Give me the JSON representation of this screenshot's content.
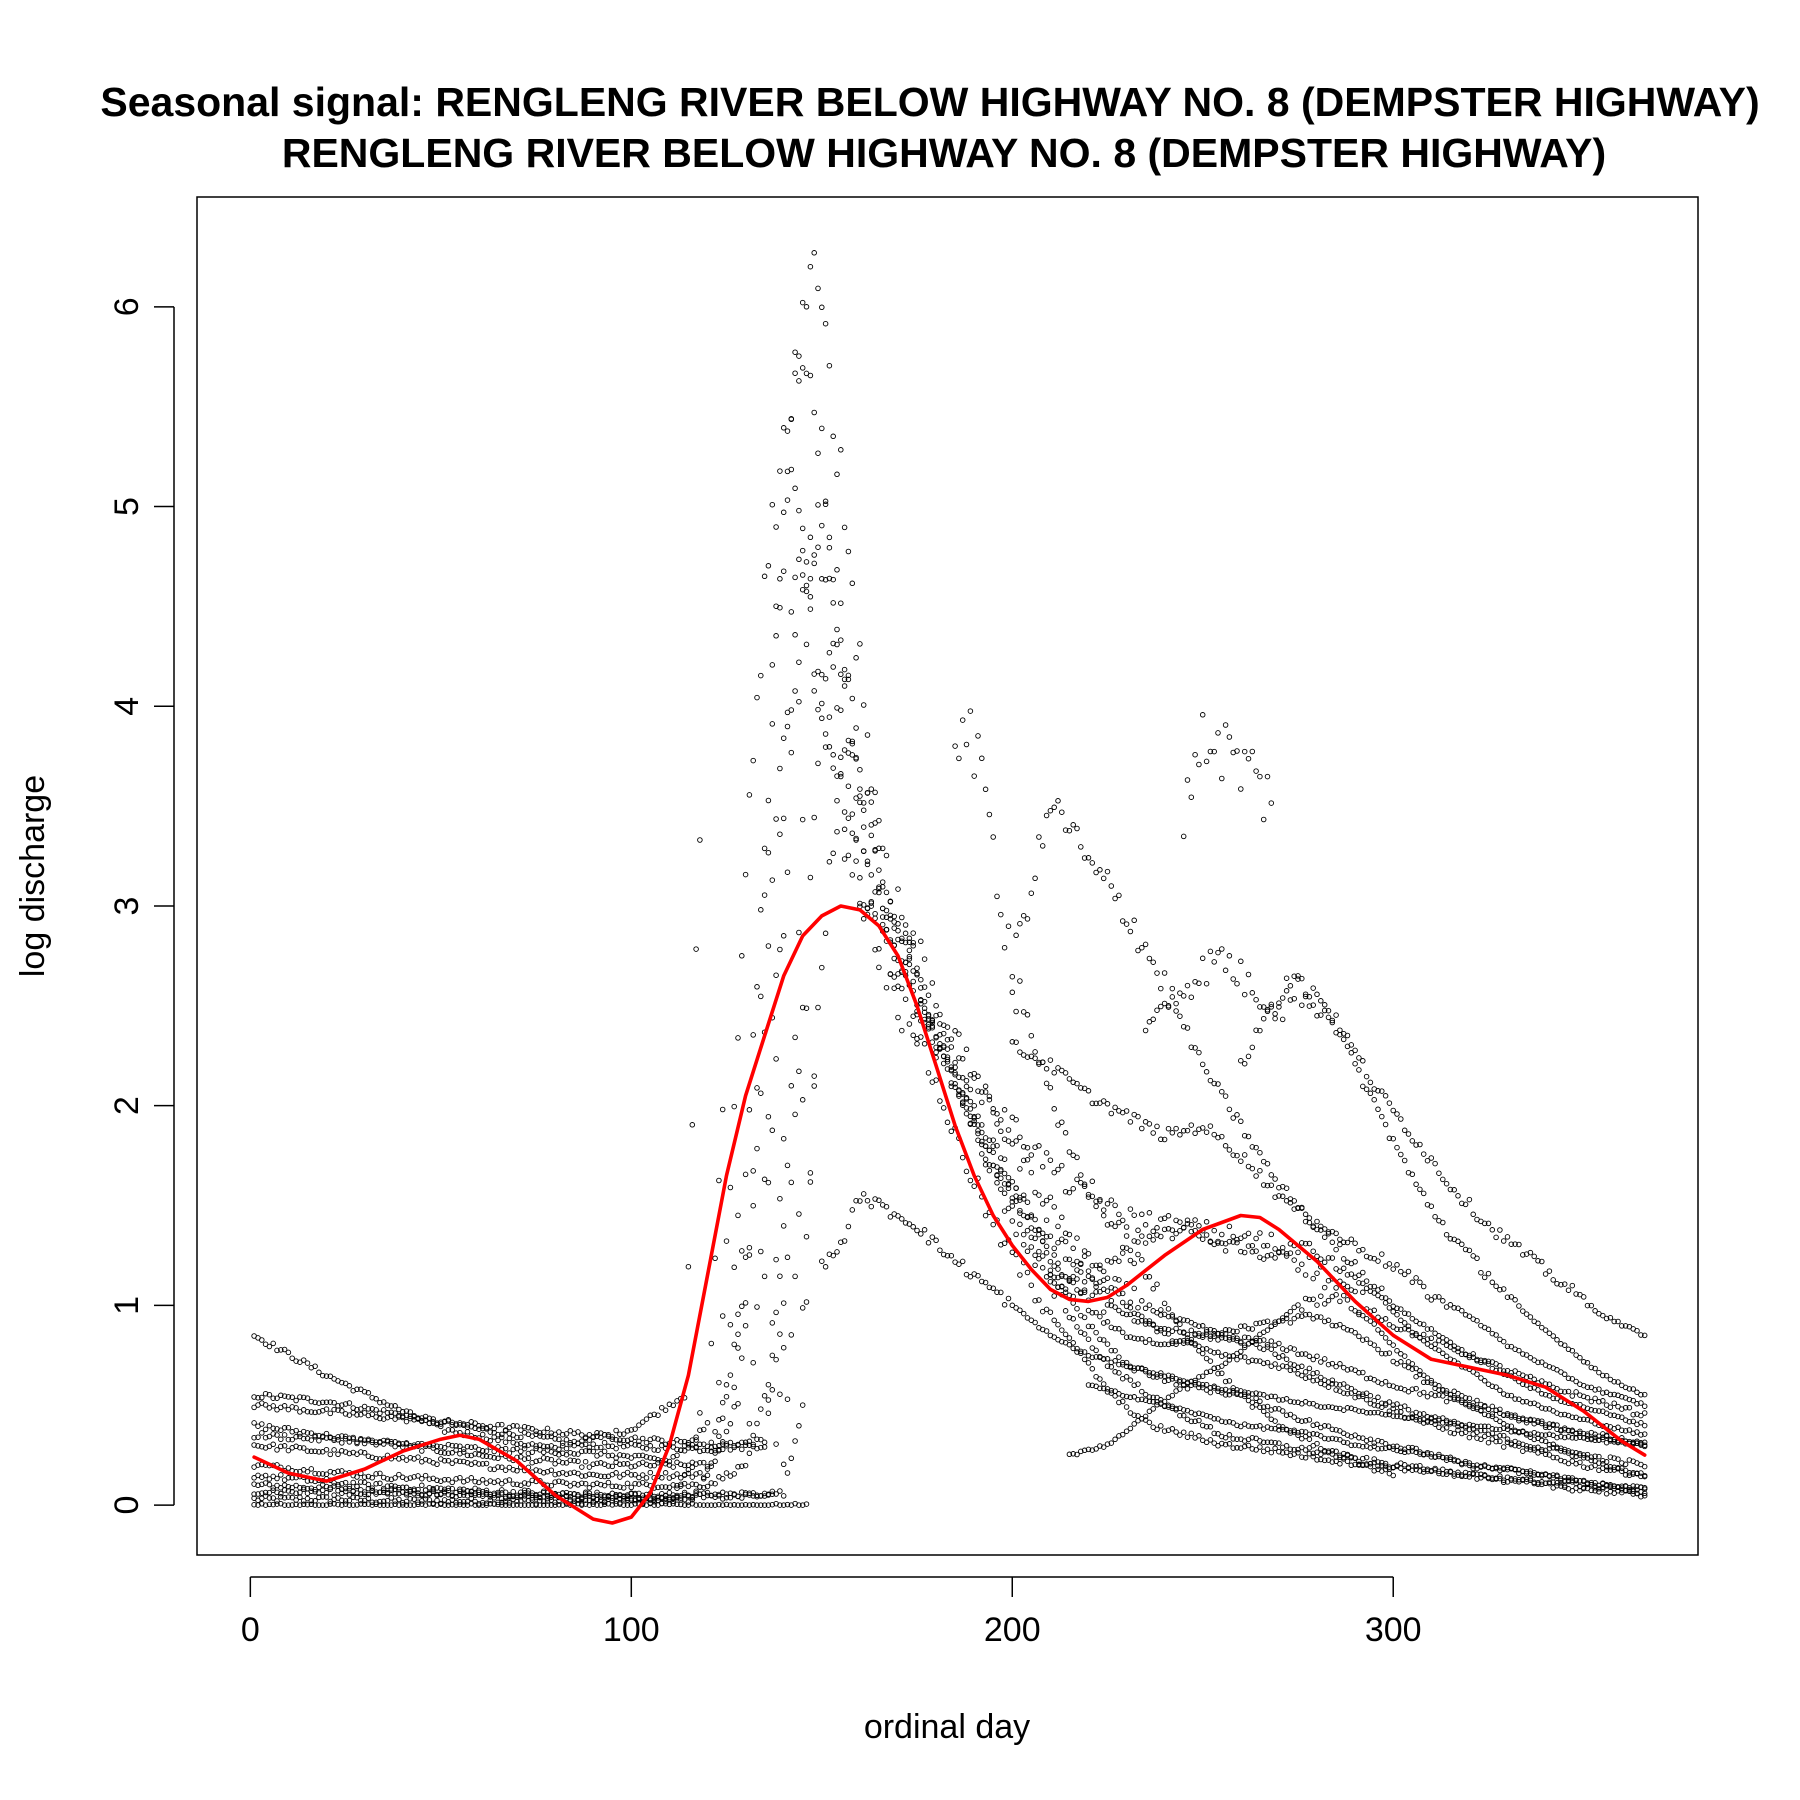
{
  "chart_data": {
    "type": "scatter",
    "title_line1": "Seasonal signal: RENGLENG RIVER BELOW HIGHWAY NO. 8 (DEMPSTER HIGHWAY)",
    "title_line2": "RENGLENG RIVER BELOW HIGHWAY NO. 8 (DEMPSTER HIGHWAY)",
    "xlabel": "ordinal day",
    "ylabel": "log discharge",
    "xlim": [
      -14,
      380
    ],
    "ylim": [
      -0.25,
      6.55
    ],
    "x_ticks": [
      0,
      100,
      200,
      300
    ],
    "x_tick_labels": [
      "0",
      "100",
      "200",
      "300"
    ],
    "y_ticks": [
      0,
      1,
      2,
      3,
      4,
      5,
      6
    ],
    "y_tick_labels": [
      "0",
      "1",
      "2",
      "3",
      "4",
      "5",
      "6"
    ],
    "grid": false,
    "legend": "none",
    "point_color": "#000000",
    "smooth_color": "#ff0000",
    "smoothed_series": {
      "x": [
        1,
        10,
        20,
        30,
        40,
        50,
        55,
        60,
        70,
        80,
        90,
        95,
        100,
        105,
        110,
        115,
        120,
        125,
        130,
        135,
        140,
        145,
        150,
        155,
        160,
        165,
        170,
        175,
        180,
        185,
        190,
        195,
        200,
        205,
        210,
        215,
        220,
        225,
        230,
        240,
        250,
        260,
        265,
        270,
        280,
        290,
        300,
        310,
        320,
        330,
        340,
        350,
        360,
        366
      ],
      "y": [
        0.24,
        0.16,
        0.12,
        0.18,
        0.27,
        0.33,
        0.35,
        0.33,
        0.22,
        0.05,
        -0.07,
        -0.09,
        -0.06,
        0.06,
        0.3,
        0.65,
        1.15,
        1.65,
        2.05,
        2.35,
        2.65,
        2.85,
        2.95,
        3.0,
        2.98,
        2.9,
        2.75,
        2.5,
        2.2,
        1.9,
        1.65,
        1.45,
        1.3,
        1.18,
        1.08,
        1.03,
        1.02,
        1.04,
        1.1,
        1.25,
        1.38,
        1.45,
        1.44,
        1.38,
        1.22,
        1.02,
        0.85,
        0.73,
        0.69,
        0.65,
        0.59,
        0.47,
        0.32,
        0.25
      ]
    },
    "year_series": [
      {
        "x": [
          1,
          20,
          40,
          60,
          80,
          100,
          115,
          118,
          122,
          126,
          128
        ],
        "y": [
          0.03,
          0.03,
          0.02,
          0.02,
          0.02,
          0.02,
          0.03,
          0.08,
          0.25,
          0.65,
          0.95
        ]
      },
      {
        "x": [
          1,
          30,
          60,
          90,
          110,
          116,
          118
        ],
        "y": [
          0.1,
          0.08,
          0.05,
          0.03,
          0.02,
          0.2,
          0.45
        ]
      },
      {
        "x": [
          1,
          20,
          40,
          60,
          90,
          120,
          135,
          140,
          143,
          145
        ],
        "y": [
          0.55,
          0.52,
          0.45,
          0.38,
          0.3,
          0.28,
          0.3,
          1.4,
          2.4,
          3.5
        ]
      },
      {
        "x": [
          1,
          20,
          50,
          80,
          100,
          114,
          118
        ],
        "y": [
          0.85,
          0.65,
          0.38,
          0.28,
          0.38,
          0.55,
          3.3
        ]
      },
      {
        "x": [
          1,
          30,
          60,
          90,
          120,
          125,
          128
        ],
        "y": [
          0.4,
          0.32,
          0.25,
          0.2,
          0.2,
          0.6,
          1.5
        ]
      },
      {
        "x": [
          1,
          30,
          60,
          90,
          120,
          126,
          130
        ],
        "y": [
          0.3,
          0.25,
          0.2,
          0.15,
          0.15,
          0.4,
          1.2
        ]
      },
      {
        "x": [
          1,
          30,
          60,
          90,
          120,
          130,
          136,
          140
        ],
        "y": [
          0.2,
          0.15,
          0.12,
          0.1,
          0.1,
          0.2,
          0.6,
          1.8
        ]
      },
      {
        "x": [
          1,
          30,
          60,
          90,
          120,
          140,
          145,
          148
        ],
        "y": [
          0.15,
          0.1,
          0.07,
          0.05,
          0.05,
          0.06,
          0.5,
          2.2
        ]
      },
      {
        "x": [
          1,
          30,
          60,
          90,
          120,
          135,
          140,
          145
        ],
        "y": [
          0.5,
          0.45,
          0.4,
          0.35,
          0.3,
          0.32,
          1.0,
          2.5
        ]
      },
      {
        "x": [
          1,
          40,
          80,
          120,
          140,
          146
        ],
        "y": [
          0.0,
          0.0,
          0.0,
          0.0,
          0.0,
          0.0
        ]
      },
      {
        "x": [
          1,
          30,
          60,
          90,
          110,
          120,
          124
        ],
        "y": [
          0.35,
          0.32,
          0.28,
          0.26,
          0.22,
          0.4,
          2.0
        ]
      },
      {
        "x": [
          1,
          40,
          80,
          120,
          137,
          140
        ],
        "y": [
          0.07,
          0.06,
          0.05,
          0.04,
          0.05,
          0.8
        ]
      },
      {
        "x": [
          127,
          130,
          134,
          138,
          142,
          146,
          150,
          155,
          160,
          166,
          172,
          180,
          190,
          200,
          210,
          220,
          230,
          245,
          260,
          280,
          300,
          320,
          340,
          355,
          366
        ],
        "y": [
          0.5,
          1.6,
          3.0,
          4.4,
          5.4,
          5.8,
          5.3,
          4.4,
          3.6,
          3.0,
          2.7,
          2.4,
          2.0,
          1.6,
          1.2,
          0.9,
          0.7,
          0.6,
          0.55,
          0.4,
          0.3,
          0.2,
          0.15,
          0.1,
          0.05
        ]
      },
      {
        "x": [
          130,
          134,
          138,
          142,
          147,
          152,
          158,
          164,
          170,
          178,
          186,
          194,
          200,
          210,
          220,
          230,
          240,
          255,
          270,
          290,
          310,
          330,
          350,
          366
        ],
        "y": [
          0.9,
          2.5,
          4.2,
          5.5,
          6.2,
          5.7,
          4.6,
          3.5,
          3.0,
          2.6,
          2.3,
          2.0,
          1.8,
          1.5,
          1.2,
          1.0,
          0.85,
          0.75,
          0.7,
          0.55,
          0.4,
          0.3,
          0.2,
          0.15
        ]
      },
      {
        "x": [
          123,
          127,
          131,
          135,
          140,
          145,
          150,
          156,
          163,
          170,
          178,
          186,
          195,
          205,
          215,
          228,
          240,
          255,
          270,
          285,
          300,
          320,
          340,
          366
        ],
        "y": [
          0.6,
          2.0,
          3.4,
          4.6,
          5.3,
          4.8,
          4.0,
          3.4,
          3.0,
          2.7,
          2.4,
          2.2,
          2.0,
          1.8,
          1.6,
          1.45,
          1.4,
          1.35,
          1.3,
          1.1,
          0.9,
          0.75,
          0.6,
          0.45
        ]
      },
      {
        "x": [
          135,
          140,
          145,
          150,
          155,
          160,
          166,
          172,
          180,
          188,
          196,
          205,
          215,
          225,
          240,
          255,
          270,
          285,
          300,
          320,
          340,
          366
        ],
        "y": [
          1.2,
          3.0,
          4.5,
          5.0,
          4.3,
          3.6,
          3.1,
          2.7,
          2.3,
          2.0,
          1.7,
          1.45,
          1.25,
          1.1,
          0.95,
          0.85,
          0.8,
          0.7,
          0.6,
          0.5,
          0.4,
          0.3
        ]
      },
      {
        "x": [
          128,
          132,
          137,
          142,
          148,
          154,
          160,
          167,
          175,
          183,
          190,
          198,
          206,
          214,
          222,
          230,
          240,
          250,
          265,
          280,
          295,
          310,
          330,
          350,
          366
        ],
        "y": [
          0.5,
          1.5,
          3.0,
          4.4,
          4.9,
          4.3,
          3.5,
          3.0,
          2.6,
          2.2,
          1.9,
          1.6,
          1.3,
          1.1,
          0.95,
          0.85,
          0.8,
          0.85,
          0.9,
          0.95,
          0.8,
          0.6,
          0.45,
          0.35,
          0.3
        ]
      },
      {
        "x": [
          140,
          144,
          148,
          152,
          157,
          163,
          170,
          178,
          186,
          195,
          205,
          215,
          225,
          235,
          250,
          265,
          280,
          300,
          320,
          340,
          366
        ],
        "y": [
          0.2,
          1.5,
          3.5,
          4.3,
          3.8,
          3.3,
          2.9,
          2.5,
          2.1,
          1.7,
          1.4,
          1.15,
          1.0,
          0.9,
          0.85,
          0.8,
          0.65,
          0.5,
          0.38,
          0.28,
          0.2
        ]
      },
      {
        "x": [
          131,
          135,
          140,
          145,
          150,
          156,
          162,
          170,
          178,
          186,
          195,
          205,
          216,
          226,
          236,
          246,
          256,
          266,
          276,
          286,
          296,
          306,
          320,
          335,
          350,
          366
        ],
        "y": [
          0.4,
          1.6,
          3.6,
          4.6,
          4.0,
          3.4,
          3.0,
          2.6,
          2.2,
          1.8,
          1.4,
          1.1,
          0.8,
          0.55,
          0.4,
          0.35,
          0.3,
          0.28,
          0.25,
          0.22,
          0.2,
          0.18,
          0.15,
          0.12,
          0.1,
          0.08
        ]
      },
      {
        "x": [
          145,
          150,
          155,
          160,
          166,
          173,
          180,
          188,
          196,
          205,
          215,
          225,
          240,
          255,
          270,
          285,
          300,
          320,
          340,
          366
        ],
        "y": [
          1.0,
          2.8,
          3.6,
          3.2,
          2.9,
          2.6,
          2.3,
          2.0,
          1.6,
          1.25,
          0.95,
          0.7,
          0.5,
          0.35,
          0.3,
          0.25,
          0.2,
          0.15,
          0.1,
          0.05
        ]
      },
      {
        "x": [
          185,
          188,
          192,
          196,
          200,
          206,
          212,
          220,
          230,
          240,
          250,
          260,
          270,
          280,
          290,
          300
        ],
        "y": [
          3.9,
          3.9,
          3.6,
          3.2,
          2.7,
          2.3,
          1.9,
          1.6,
          1.3,
          1.0,
          0.75,
          0.55,
          0.4,
          0.3,
          0.22,
          0.15
        ]
      },
      {
        "x": [
          200,
          205,
          210,
          215,
          220,
          225,
          232,
          240,
          250,
          260,
          270,
          285,
          300,
          320,
          340,
          366
        ],
        "y": [
          2.7,
          3.1,
          3.5,
          3.4,
          3.2,
          3.1,
          2.9,
          2.6,
          2.2,
          1.9,
          1.6,
          1.3,
          1.0,
          0.75,
          0.55,
          0.4
        ]
      },
      {
        "x": [
          245,
          248,
          251,
          255,
          260,
          264,
          268
        ],
        "y": [
          3.5,
          3.75,
          3.85,
          3.8,
          3.7,
          3.65,
          3.5
        ]
      },
      {
        "x": [
          235,
          245,
          255,
          262,
          270,
          278,
          286,
          295,
          305,
          315,
          325,
          335,
          345,
          355,
          366
        ],
        "y": [
          2.4,
          2.6,
          2.75,
          2.6,
          2.5,
          2.6,
          2.4,
          2.1,
          1.85,
          1.6,
          1.4,
          1.25,
          1.1,
          0.95,
          0.85
        ]
      },
      {
        "x": [
          260,
          268,
          276,
          282,
          290,
          298,
          306,
          315,
          325,
          335,
          345,
          355,
          366
        ],
        "y": [
          2.2,
          2.5,
          2.6,
          2.5,
          2.2,
          1.9,
          1.6,
          1.35,
          1.15,
          0.95,
          0.8,
          0.65,
          0.55
        ]
      },
      {
        "x": [
          200,
          210,
          220,
          230,
          240,
          250,
          260,
          270,
          280,
          290,
          300,
          310,
          320,
          330,
          340,
          350,
          366
        ],
        "y": [
          2.3,
          2.2,
          2.05,
          1.95,
          1.85,
          1.9,
          1.75,
          1.55,
          1.4,
          1.3,
          1.2,
          1.05,
          0.95,
          0.8,
          0.7,
          0.6,
          0.5
        ]
      },
      {
        "x": [
          210,
          220,
          228,
          236,
          246,
          256,
          266,
          276,
          286,
          296,
          306,
          318,
          330,
          345,
          366
        ],
        "y": [
          1.1,
          1.15,
          1.25,
          1.35,
          1.4,
          1.3,
          1.25,
          1.3,
          1.2,
          1.05,
          0.85,
          0.7,
          0.55,
          0.45,
          0.35
        ]
      },
      {
        "x": [
          215,
          225,
          235,
          245,
          255,
          265,
          275,
          285,
          295,
          305,
          315,
          325,
          335,
          345,
          355,
          366
        ],
        "y": [
          0.25,
          0.3,
          0.45,
          0.6,
          0.7,
          0.85,
          1.0,
          1.05,
          0.9,
          0.7,
          0.55,
          0.45,
          0.35,
          0.28,
          0.2,
          0.15
        ]
      },
      {
        "x": [
          220,
          230,
          240,
          250,
          260,
          270,
          280,
          290,
          300,
          310,
          320,
          330,
          340,
          355,
          366
        ],
        "y": [
          0.6,
          0.55,
          0.5,
          0.45,
          0.4,
          0.38,
          0.35,
          0.3,
          0.28,
          0.25,
          0.2,
          0.18,
          0.15,
          0.1,
          0.08
        ]
      },
      {
        "x": [
          150,
          155,
          160,
          165,
          170,
          175,
          180,
          190,
          200,
          210,
          220,
          230,
          240,
          250,
          265,
          280,
          300,
          320,
          340,
          366
        ],
        "y": [
          1.2,
          1.3,
          1.55,
          1.5,
          1.45,
          1.4,
          1.3,
          1.15,
          1.0,
          0.85,
          0.75,
          0.7,
          0.65,
          0.6,
          0.55,
          0.5,
          0.45,
          0.4,
          0.35,
          0.3
        ]
      }
    ]
  }
}
